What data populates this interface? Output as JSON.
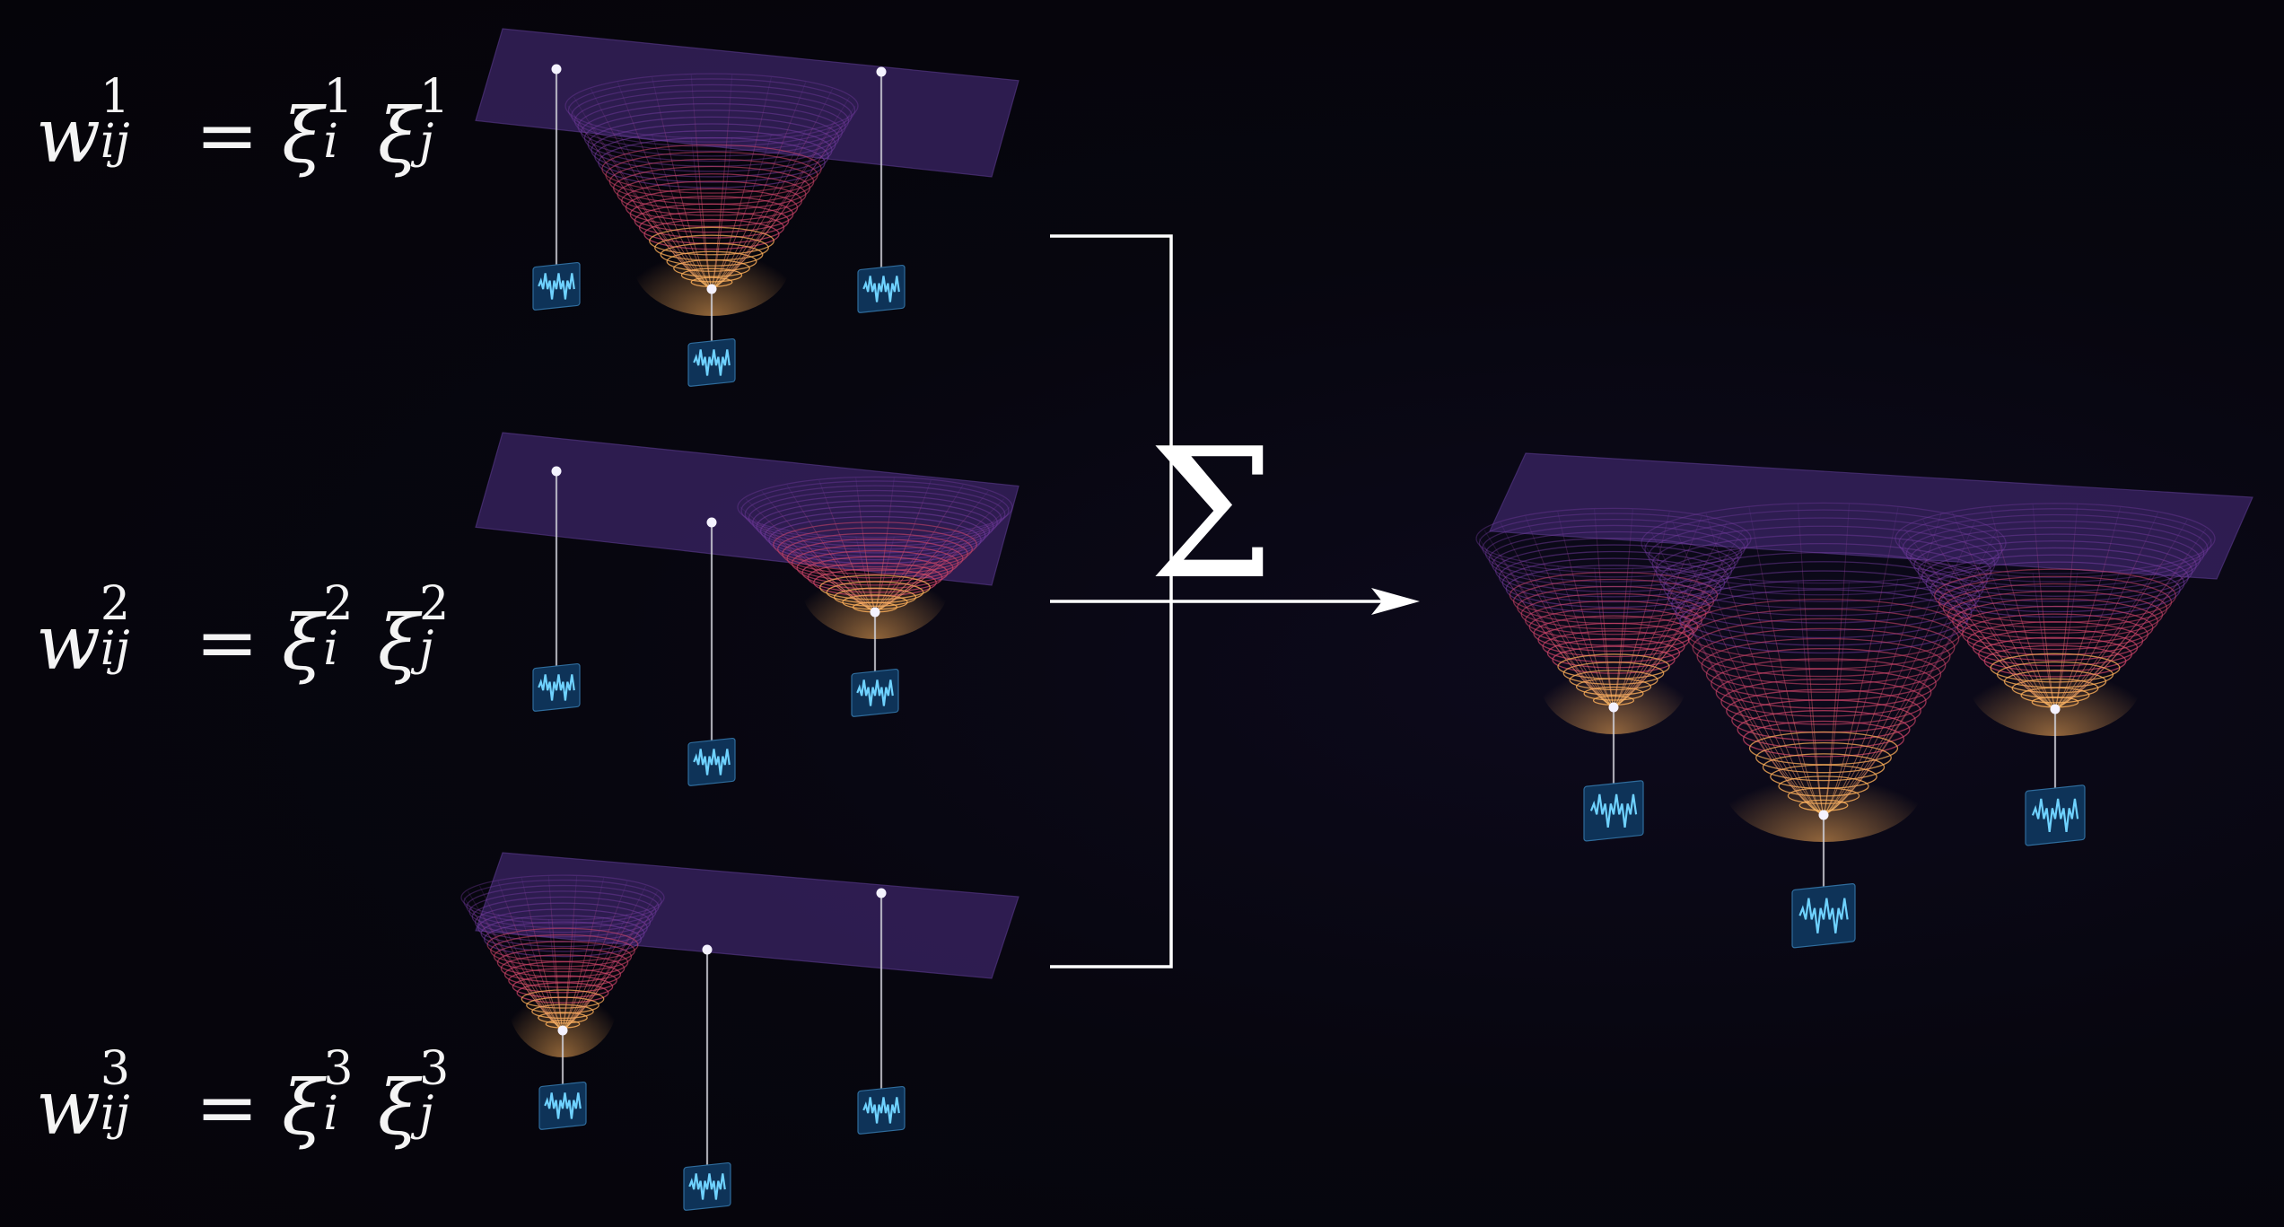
{
  "equations": [
    {
      "w": "w",
      "w_sup": "1",
      "w_sub": "ij",
      "eq": "=",
      "x1": "ξ",
      "x1_sup": "1",
      "x1_sub": "i",
      "x2": "ξ",
      "x2_sup": "1",
      "x2_sub": "j"
    },
    {
      "w": "w",
      "w_sup": "2",
      "w_sub": "ij",
      "eq": "=",
      "x1": "ξ",
      "x1_sup": "2",
      "x1_sub": "i",
      "x2": "ξ",
      "x2_sup": "2",
      "x2_sub": "j"
    },
    {
      "w": "w",
      "w_sup": "3",
      "w_sub": "ij",
      "eq": "=",
      "x1": "ξ",
      "x1_sup": "3",
      "x1_sub": "i",
      "x2": "ξ",
      "x2_sup": "3",
      "x2_sub": "j"
    }
  ],
  "sum_symbol": "Σ",
  "colors": {
    "background": "#06050d",
    "plane": "#3b2466",
    "mesh_top": "#7a3fa8",
    "mesh_mid": "#d0456a",
    "mesh_bottom": "#ffb15a",
    "stem": "#cfcfd8",
    "audio_icon_bg": "#0e3358",
    "audio_wave": "#6fd2ff",
    "connector": "#ffffff",
    "text": "#f4f4f4"
  },
  "icons": [
    "audio-waveform-icon"
  ]
}
